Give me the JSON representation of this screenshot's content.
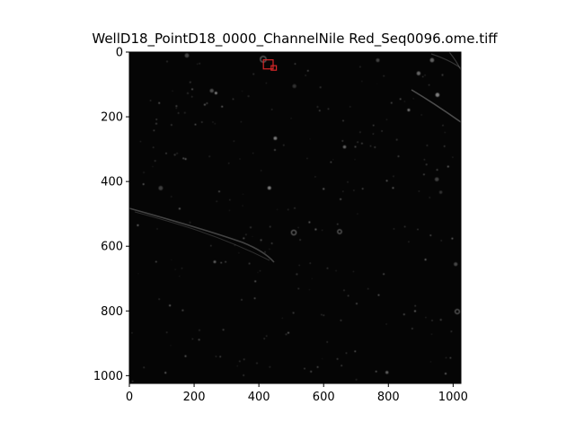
{
  "figure": {
    "title": "WellD18_PointD18_0000_ChannelNile Red_Seq0096.ome.tiff"
  },
  "image_extent": {
    "x": [
      0,
      1024
    ],
    "y": [
      0,
      1024
    ]
  },
  "axes": {
    "x_ticks": [
      0,
      200,
      400,
      600,
      800,
      1000
    ],
    "y_ticks": [
      0,
      200,
      400,
      600,
      800,
      1000
    ]
  },
  "colors": {
    "image_background": "#050505",
    "speck": "#9a9a9a",
    "highlight_box": "#d62728"
  },
  "highlight_boxes": [
    {
      "x": 414,
      "y": 24,
      "w": 30,
      "h": 28
    },
    {
      "x": 438,
      "y": 42,
      "w": 16,
      "h": 14
    }
  ]
}
